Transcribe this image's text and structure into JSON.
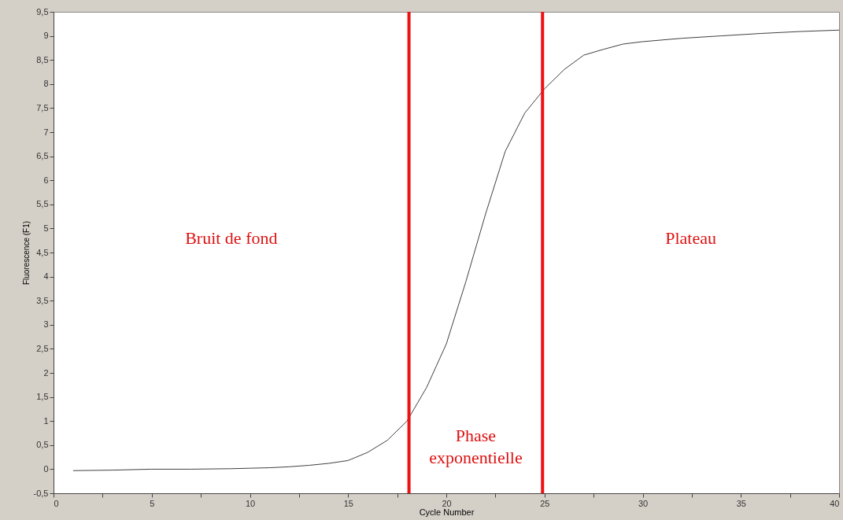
{
  "chart_data": {
    "type": "line",
    "xlabel": "Cycle Number",
    "ylabel": "Fluorescence (F1)",
    "x": [
      1,
      3,
      5,
      7,
      9,
      10,
      11,
      12,
      13,
      14,
      15,
      16,
      17,
      18,
      19,
      20,
      21,
      22,
      23,
      24,
      25,
      26,
      27,
      28,
      29,
      30,
      32,
      34,
      36,
      38,
      40
    ],
    "series": [
      {
        "color": "#404040",
        "values": [
          -0.03,
          -0.02,
          0.0,
          0.0,
          0.01,
          0.02,
          0.03,
          0.05,
          0.08,
          0.12,
          0.18,
          0.35,
          0.6,
          1.0,
          1.7,
          2.6,
          3.9,
          5.3,
          6.6,
          7.4,
          7.9,
          8.3,
          8.6,
          8.72,
          8.83,
          8.88,
          8.95,
          9.0,
          9.05,
          9.09,
          9.12
        ]
      }
    ],
    "xlim": [
      0,
      40
    ],
    "ylim": [
      -0.5,
      9.5
    ],
    "xticks": [
      0,
      {
        "value": 2.5,
        "label": null
      },
      5,
      {
        "value": 7.5,
        "label": null
      },
      10,
      {
        "value": 12.5,
        "label": null
      },
      15,
      {
        "value": 17.5,
        "label": null
      },
      20,
      {
        "value": 22.5,
        "label": null
      },
      25,
      {
        "value": 27.5,
        "label": null
      },
      30,
      {
        "value": 32.5,
        "label": null
      },
      35,
      {
        "value": 37.5,
        "label": null
      },
      40
    ],
    "yticks": [
      {
        "value": -0.5,
        "label": "-0,5"
      },
      0,
      {
        "value": 0.5,
        "label": "0,5"
      },
      1,
      {
        "value": 1.5,
        "label": "1,5"
      },
      2,
      {
        "value": 2.5,
        "label": "2,5"
      },
      3,
      {
        "value": 3.5,
        "label": "3,5"
      },
      4,
      {
        "value": 4.5,
        "label": "4,5"
      },
      5,
      {
        "value": 5.5,
        "label": "5,5"
      },
      6,
      {
        "value": 6.5,
        "label": "6,5"
      },
      7,
      {
        "value": 7.5,
        "label": "7,5"
      },
      8,
      {
        "value": 8.5,
        "label": "8,5"
      },
      9,
      {
        "value": 9.5,
        "label": "9,5"
      }
    ],
    "ref_lines": [
      {
        "axis": "x",
        "value": 18.1,
        "color": "#ee1111",
        "line_style": "solid"
      },
      {
        "axis": "x",
        "value": 24.9,
        "color": "#ee1111",
        "line_style": "solid"
      }
    ],
    "annotations": [
      "Bruit de fond",
      "Phase exponentielle",
      "Plateau"
    ],
    "grid": false,
    "marker": "none",
    "line_style": "solid"
  }
}
